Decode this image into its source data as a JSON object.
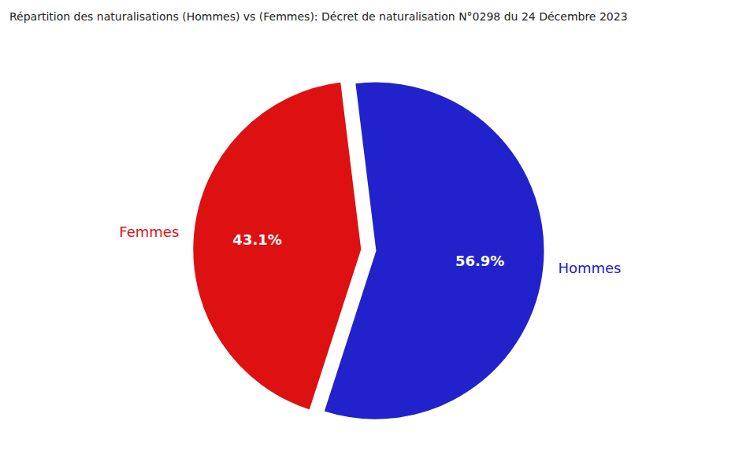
{
  "chart_data": {
    "type": "pie",
    "title": "Répartition des naturalisations (Hommes) vs (Femmes): Décret de naturalisation N°0298 du 24 Décembre 2023",
    "categories": [
      "Hommes",
      "Femmes"
    ],
    "values": [
      56.9,
      43.1
    ],
    "value_labels": [
      "56.9%",
      "43.1%"
    ],
    "colors": [
      "#2222cc",
      "#dd1111"
    ],
    "data_labels": true
  }
}
